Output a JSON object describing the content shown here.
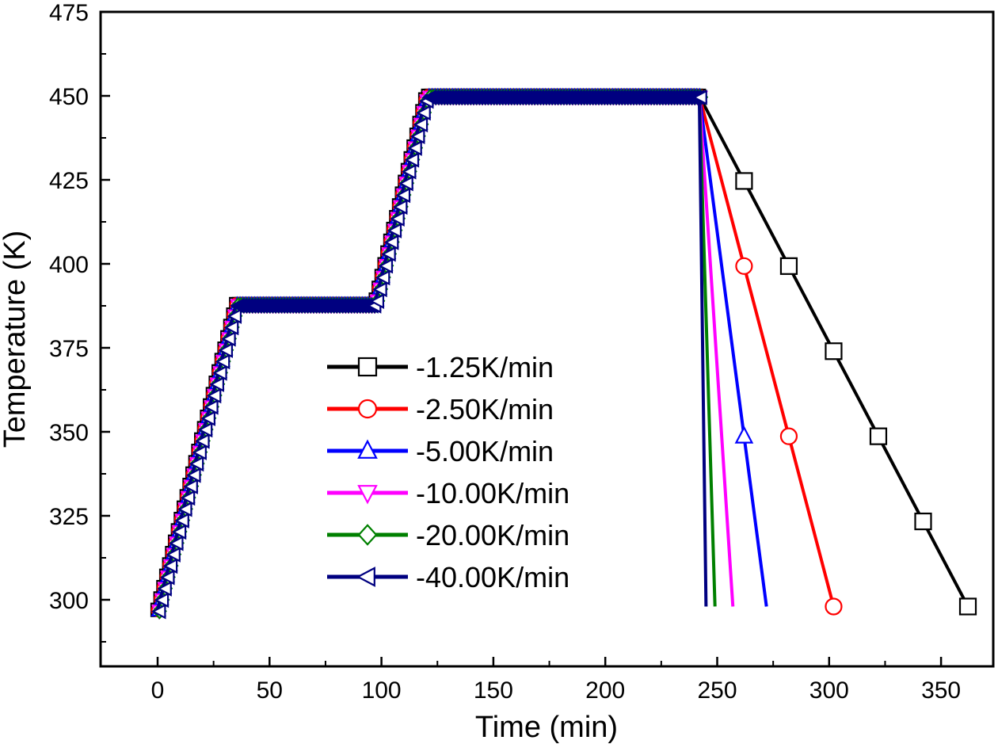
{
  "chart_data": {
    "type": "line",
    "title": "",
    "xlabel": "Time (min)",
    "ylabel": "Temperature (K)",
    "xlim": [
      -10,
      365
    ],
    "ylim": [
      285,
      475
    ],
    "xticks": [
      0,
      50,
      100,
      150,
      200,
      250,
      300,
      350
    ],
    "yticks": [
      300,
      325,
      350,
      375,
      400,
      425,
      450,
      475
    ],
    "grid": false,
    "legend_position": "center-left",
    "heating_profile": [
      [
        0,
        297
      ],
      [
        35,
        388
      ],
      [
        97,
        388
      ],
      [
        120,
        450
      ],
      [
        242,
        450
      ]
    ],
    "series": [
      {
        "name": "-1.25K/min",
        "color": "#000000",
        "marker": "square",
        "end_time": 362,
        "end_temp": 298
      },
      {
        "name": "-2.50K/min",
        "color": "#ff0000",
        "marker": "circle",
        "end_time": 302,
        "end_temp": 298
      },
      {
        "name": "-5.00K/min",
        "color": "#0000ff",
        "marker": "triangle-up",
        "end_time": 272,
        "end_temp": 298
      },
      {
        "name": "-10.00K/min",
        "color": "#ff00ff",
        "marker": "triangle-down",
        "end_time": 257,
        "end_temp": 298
      },
      {
        "name": "-20.00K/min",
        "color": "#008000",
        "marker": "diamond",
        "end_time": 249,
        "end_temp": 298
      },
      {
        "name": "-40.00K/min",
        "color": "#000080",
        "marker": "triangle-left",
        "end_time": 245,
        "end_temp": 298
      }
    ]
  }
}
